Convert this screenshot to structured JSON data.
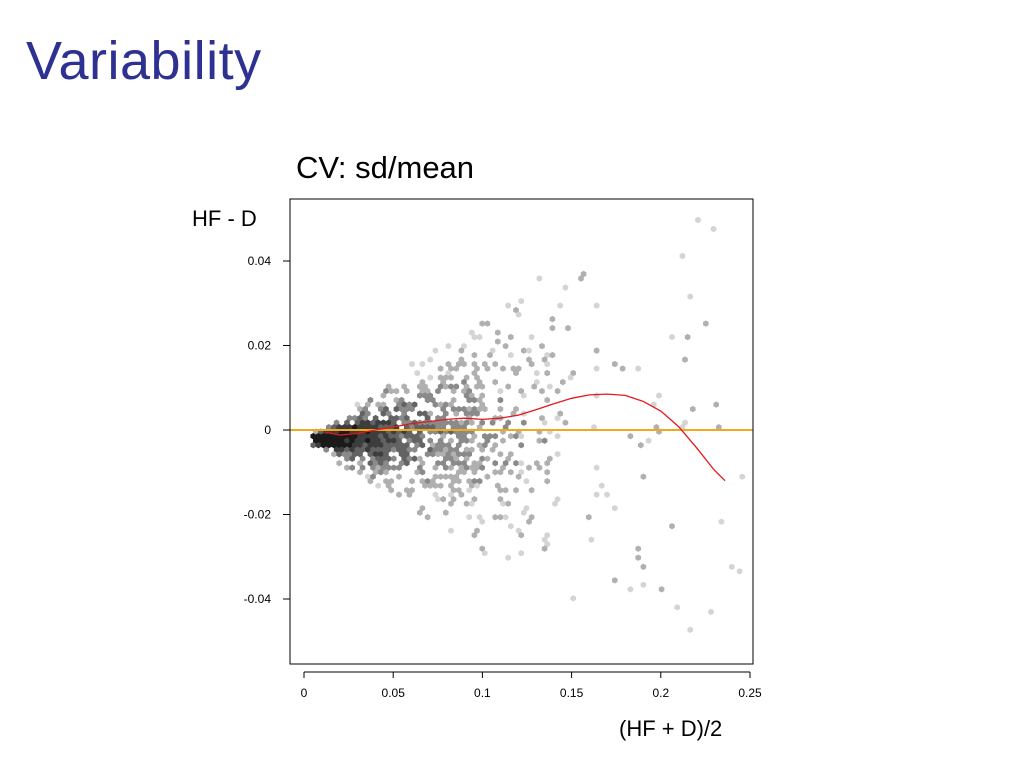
{
  "slide": {
    "title": "Variability"
  },
  "chart_data": {
    "type": "scatter",
    "title": "CV: sd/mean",
    "xlabel": "(HF + D)/2",
    "ylabel": "HF - D",
    "xlim": [
      0,
      0.25
    ],
    "ylim": [
      -0.05,
      0.05
    ],
    "x_ticks": [
      {
        "value": 0,
        "label": "0"
      },
      {
        "value": 0.05,
        "label": "0.05"
      },
      {
        "value": 0.1,
        "label": "0.1"
      },
      {
        "value": 0.15,
        "label": "0.15"
      },
      {
        "value": 0.2,
        "label": "0.2"
      },
      {
        "value": 0.25,
        "label": "0.25"
      }
    ],
    "y_ticks": [
      {
        "value": -0.04,
        "label": "-0.04"
      },
      {
        "value": -0.02,
        "label": "-0.02"
      },
      {
        "value": 0,
        "label": "0"
      },
      {
        "value": 0.02,
        "label": "0.02"
      },
      {
        "value": 0.04,
        "label": "0.04"
      }
    ],
    "grid": false,
    "legend": "none",
    "description_style": "hexbin density of points (darker = denser), dense wedge near origin fanning out with x",
    "reference_line": {
      "y": 0,
      "color": "#f0a81c"
    },
    "series": [
      {
        "type": "line",
        "color": "#e31a1c",
        "x": [
          0.012,
          0.02,
          0.03,
          0.04,
          0.05,
          0.06,
          0.07,
          0.08,
          0.09,
          0.1,
          0.11,
          0.12,
          0.13,
          0.14,
          0.15,
          0.16,
          0.17,
          0.18,
          0.19,
          0.2,
          0.21,
          0.22,
          0.23,
          0.236
        ],
        "y": [
          -0.0005,
          -0.0012,
          -0.0008,
          0.0,
          0.0007,
          0.0015,
          0.002,
          0.0025,
          0.0028,
          0.0025,
          0.0028,
          0.0035,
          0.0048,
          0.0062,
          0.0075,
          0.0083,
          0.0085,
          0.0082,
          0.0068,
          0.0045,
          0.0008,
          -0.0042,
          -0.0095,
          -0.012
        ]
      }
    ],
    "density_colors": [
      "#d4d4d4",
      "#b0b0b0",
      "#8a8a8a",
      "#636363",
      "#3d3d3d",
      "#1a1a1a"
    ]
  }
}
